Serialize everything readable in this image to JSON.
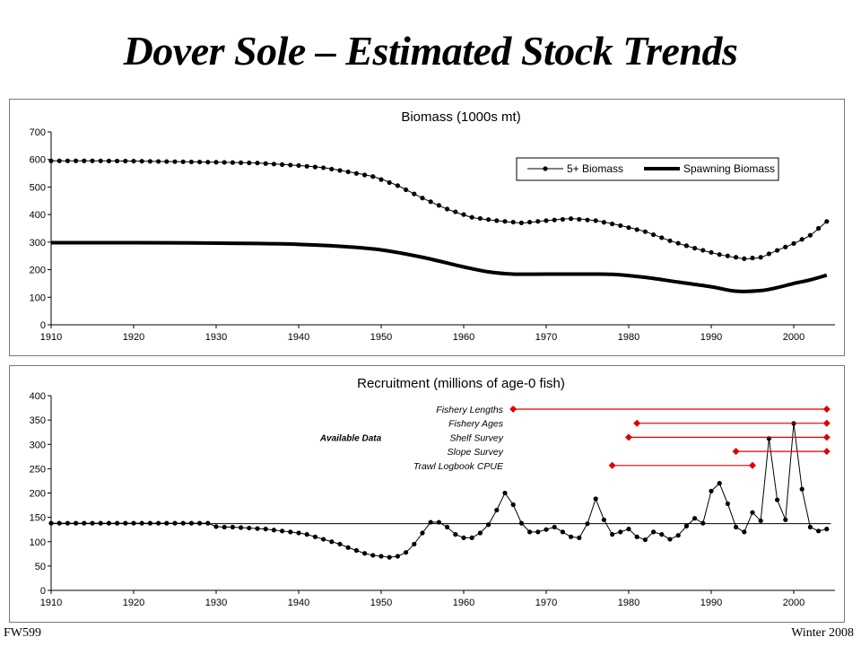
{
  "slide": {
    "title": "Dover Sole – Estimated Stock Trends",
    "footer_left": "FW599",
    "footer_right": "Winter 2008"
  },
  "chart_data": [
    {
      "type": "line",
      "title": "Biomass (1000s mt)",
      "xlabel": "",
      "ylabel": "",
      "xlim": [
        1910,
        2005
      ],
      "ylim": [
        0,
        700
      ],
      "x_ticks": [
        1910,
        1920,
        1930,
        1940,
        1950,
        1960,
        1970,
        1980,
        1990,
        2000
      ],
      "y_ticks": [
        0,
        100,
        200,
        300,
        400,
        500,
        600,
        700
      ],
      "legend": {
        "placement": "top-right",
        "labels": [
          "5+ Biomass",
          "Spawning Biomass"
        ]
      },
      "series": [
        {
          "name": "5+ Biomass",
          "style": "line-dots",
          "points": [
            [
              1910,
              595
            ],
            [
              1915,
              595
            ],
            [
              1920,
              594
            ],
            [
              1925,
              592
            ],
            [
              1930,
              590
            ],
            [
              1935,
              587
            ],
            [
              1940,
              578
            ],
            [
              1943,
              570
            ],
            [
              1946,
              555
            ],
            [
              1949,
              538
            ],
            [
              1952,
              505
            ],
            [
              1955,
              460
            ],
            [
              1958,
              420
            ],
            [
              1961,
              390
            ],
            [
              1964,
              378
            ],
            [
              1967,
              370
            ],
            [
              1970,
              378
            ],
            [
              1973,
              385
            ],
            [
              1976,
              378
            ],
            [
              1979,
              360
            ],
            [
              1982,
              338
            ],
            [
              1985,
              305
            ],
            [
              1988,
              278
            ],
            [
              1991,
              255
            ],
            [
              1994,
              240
            ],
            [
              1996,
              245
            ],
            [
              1998,
              270
            ],
            [
              2000,
              295
            ],
            [
              2002,
              325
            ],
            [
              2004,
              375
            ]
          ]
        },
        {
          "name": "Spawning Biomass",
          "style": "thick-line",
          "points": [
            [
              1910,
              298
            ],
            [
              1920,
              298
            ],
            [
              1927,
              297
            ],
            [
              1935,
              295
            ],
            [
              1940,
              292
            ],
            [
              1945,
              285
            ],
            [
              1950,
              272
            ],
            [
              1955,
              245
            ],
            [
              1960,
              210
            ],
            [
              1963,
              192
            ],
            [
              1966,
              184
            ],
            [
              1970,
              184
            ],
            [
              1975,
              184
            ],
            [
              1978,
              183
            ],
            [
              1982,
              172
            ],
            [
              1986,
              155
            ],
            [
              1990,
              138
            ],
            [
              1993,
              122
            ],
            [
              1996,
              124
            ],
            [
              1998,
              135
            ],
            [
              2000,
              150
            ],
            [
              2002,
              163
            ],
            [
              2004,
              180
            ]
          ]
        }
      ]
    },
    {
      "type": "line",
      "title": "Recruitment (millions of age-0 fish)",
      "xlabel": "",
      "ylabel": "",
      "xlim": [
        1910,
        2005
      ],
      "ylim": [
        0,
        400
      ],
      "x_ticks": [
        1910,
        1920,
        1930,
        1940,
        1950,
        1960,
        1970,
        1980,
        1990,
        2000
      ],
      "y_ticks": [
        0,
        50,
        100,
        150,
        200,
        250,
        300,
        350,
        400
      ],
      "mean_line": 137,
      "series": [
        {
          "name": "Recruitment",
          "style": "line-dots",
          "points": [
            [
              1910,
              138
            ],
            [
              1911,
              138
            ],
            [
              1912,
              138
            ],
            [
              1913,
              138
            ],
            [
              1914,
              138
            ],
            [
              1915,
              138
            ],
            [
              1916,
              138
            ],
            [
              1917,
              138
            ],
            [
              1918,
              138
            ],
            [
              1919,
              138
            ],
            [
              1920,
              138
            ],
            [
              1921,
              138
            ],
            [
              1922,
              138
            ],
            [
              1923,
              138
            ],
            [
              1924,
              138
            ],
            [
              1925,
              138
            ],
            [
              1926,
              138
            ],
            [
              1927,
              138
            ],
            [
              1928,
              138
            ],
            [
              1929,
              138
            ],
            [
              1930,
              131
            ],
            [
              1931,
              130
            ],
            [
              1932,
              130
            ],
            [
              1933,
              129
            ],
            [
              1934,
              128
            ],
            [
              1935,
              127
            ],
            [
              1936,
              126
            ],
            [
              1937,
              124
            ],
            [
              1938,
              122
            ],
            [
              1939,
              120
            ],
            [
              1940,
              118
            ],
            [
              1941,
              115
            ],
            [
              1942,
              110
            ],
            [
              1943,
              105
            ],
            [
              1944,
              100
            ],
            [
              1945,
              95
            ],
            [
              1946,
              88
            ],
            [
              1947,
              82
            ],
            [
              1948,
              76
            ],
            [
              1949,
              72
            ],
            [
              1950,
              70
            ],
            [
              1951,
              68
            ],
            [
              1952,
              70
            ],
            [
              1953,
              78
            ],
            [
              1954,
              95
            ],
            [
              1955,
              118
            ],
            [
              1956,
              140
            ],
            [
              1957,
              140
            ],
            [
              1958,
              130
            ],
            [
              1959,
              115
            ],
            [
              1960,
              108
            ],
            [
              1961,
              108
            ],
            [
              1962,
              118
            ],
            [
              1963,
              135
            ],
            [
              1964,
              165
            ],
            [
              1965,
              200
            ],
            [
              1966,
              176
            ],
            [
              1967,
              138
            ],
            [
              1968,
              120
            ],
            [
              1969,
              120
            ],
            [
              1970,
              125
            ],
            [
              1971,
              130
            ],
            [
              1972,
              120
            ],
            [
              1973,
              110
            ],
            [
              1974,
              108
            ],
            [
              1975,
              137
            ],
            [
              1976,
              188
            ],
            [
              1977,
              145
            ],
            [
              1978,
              115
            ],
            [
              1979,
              120
            ],
            [
              1980,
              126
            ],
            [
              1981,
              110
            ],
            [
              1982,
              104
            ],
            [
              1983,
              120
            ],
            [
              1984,
              115
            ],
            [
              1985,
              105
            ],
            [
              1986,
              113
            ],
            [
              1987,
              132
            ],
            [
              1988,
              148
            ],
            [
              1989,
              138
            ],
            [
              1990,
              204
            ],
            [
              1991,
              220
            ],
            [
              1992,
              178
            ],
            [
              1993,
              130
            ],
            [
              1994,
              120
            ],
            [
              1995,
              160
            ],
            [
              1996,
              143
            ],
            [
              1997,
              312
            ],
            [
              1998,
              186
            ],
            [
              1999,
              145
            ],
            [
              2000,
              343
            ],
            [
              2001,
              208
            ],
            [
              2002,
              130
            ],
            [
              2003,
              122
            ],
            [
              2004,
              126
            ]
          ]
        }
      ],
      "annotation": {
        "label": "Available Data",
        "rows": [
          {
            "name": "Fishery Lengths",
            "start": 1966,
            "end": 2004
          },
          {
            "name": "Fishery Ages",
            "start": 1981,
            "end": 2004
          },
          {
            "name": "Shelf Survey",
            "start": 1980,
            "end": 2004
          },
          {
            "name": "Slope Survey",
            "start": 1993,
            "end": 2004
          },
          {
            "name": "Trawl Logbook CPUE",
            "start": 1978,
            "end": 1995
          }
        ],
        "color": "#e00000"
      }
    }
  ]
}
